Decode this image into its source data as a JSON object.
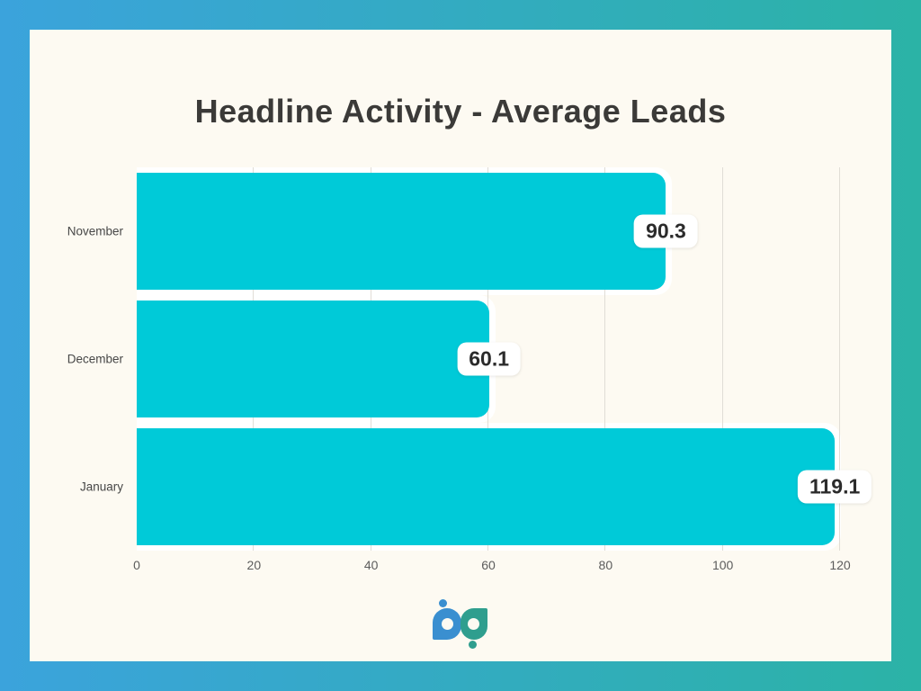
{
  "frame": {
    "gradient_start": "#3BA3DC",
    "gradient_end": "#2BB3A6",
    "panel_bg": "#FDFAF2"
  },
  "title": "Headline Activity - Average Leads",
  "chart_data": {
    "type": "bar",
    "orientation": "horizontal",
    "title": "Headline Activity - Average Leads",
    "categories": [
      "November",
      "December",
      "January"
    ],
    "values": [
      90.3,
      60.1,
      119.1
    ],
    "value_labels": [
      "90.3",
      "60.1",
      "119.1"
    ],
    "xlim": [
      0,
      120
    ],
    "x_ticks": [
      0,
      20,
      40,
      60,
      80,
      100,
      120
    ],
    "xlabel": "",
    "ylabel": "",
    "legend": "none",
    "grid": true,
    "bar_color": "#00CAD8",
    "gridline_color": "#E0DDD6",
    "value_label_text_color": "#2B2B2B",
    "value_label_bg": "#FFFFFF"
  },
  "logo": {
    "label": "bp",
    "blue": "#3A8FD0",
    "teal": "#2F9E8E"
  }
}
